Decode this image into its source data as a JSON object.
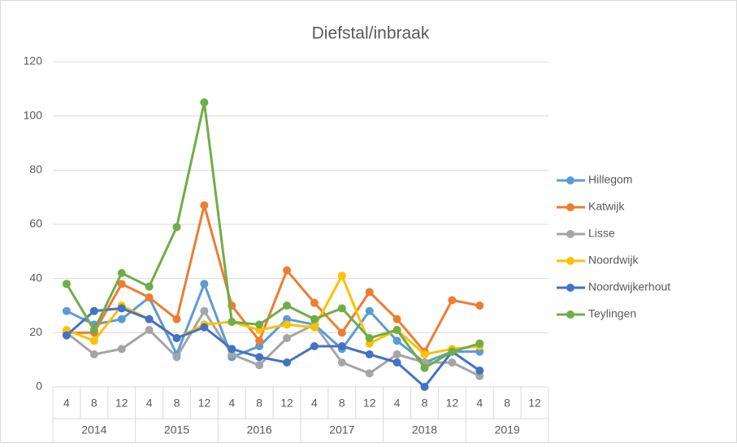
{
  "chart_data": {
    "type": "line",
    "title": "Diefstal/inbraak",
    "categories": [
      "4",
      "8",
      "12",
      "4",
      "8",
      "12",
      "4",
      "8",
      "12",
      "4",
      "8",
      "12",
      "4",
      "8",
      "12",
      "4",
      "8",
      "12"
    ],
    "groups": [
      "2014",
      "2015",
      "2016",
      "2017",
      "2018",
      "2019"
    ],
    "series": [
      {
        "name": "Hillegom",
        "color": "#5b9bd5",
        "values": [
          28,
          23,
          25,
          33,
          12,
          38,
          11,
          15,
          25,
          23,
          14,
          28,
          17,
          9,
          13,
          13,
          null,
          null
        ]
      },
      {
        "name": "Katwijk",
        "color": "#ed7d31",
        "values": [
          20,
          20,
          38,
          33,
          25,
          67,
          30,
          17,
          43,
          31,
          20,
          35,
          25,
          13,
          32,
          30,
          null,
          null
        ]
      },
      {
        "name": "Lisse",
        "color": "#a5a5a5",
        "values": [
          20,
          12,
          14,
          21,
          11,
          28,
          12,
          8,
          18,
          23,
          9,
          5,
          12,
          9,
          9,
          4,
          null,
          null
        ]
      },
      {
        "name": "Noordwijk",
        "color": "#ffc000",
        "values": [
          21,
          17,
          30,
          25,
          18,
          23,
          24,
          21,
          23,
          22,
          41,
          16,
          21,
          12,
          14,
          15,
          null,
          null
        ]
      },
      {
        "name": "Noordwijkerhout",
        "color": "#4472c4",
        "values": [
          19,
          28,
          29,
          25,
          18,
          22,
          14,
          11,
          9,
          15,
          15,
          12,
          9,
          0,
          13,
          6,
          null,
          null
        ]
      },
      {
        "name": "Teylingen",
        "color": "#70ad47",
        "values": [
          38,
          21,
          42,
          37,
          59,
          105,
          24,
          23,
          30,
          25,
          29,
          18,
          21,
          7,
          13,
          16,
          null,
          null
        ]
      }
    ],
    "ylim": [
      0,
      120
    ],
    "yticks": [
      0,
      20,
      40,
      60,
      80,
      100,
      120
    ],
    "grid": true,
    "legend": "right"
  }
}
